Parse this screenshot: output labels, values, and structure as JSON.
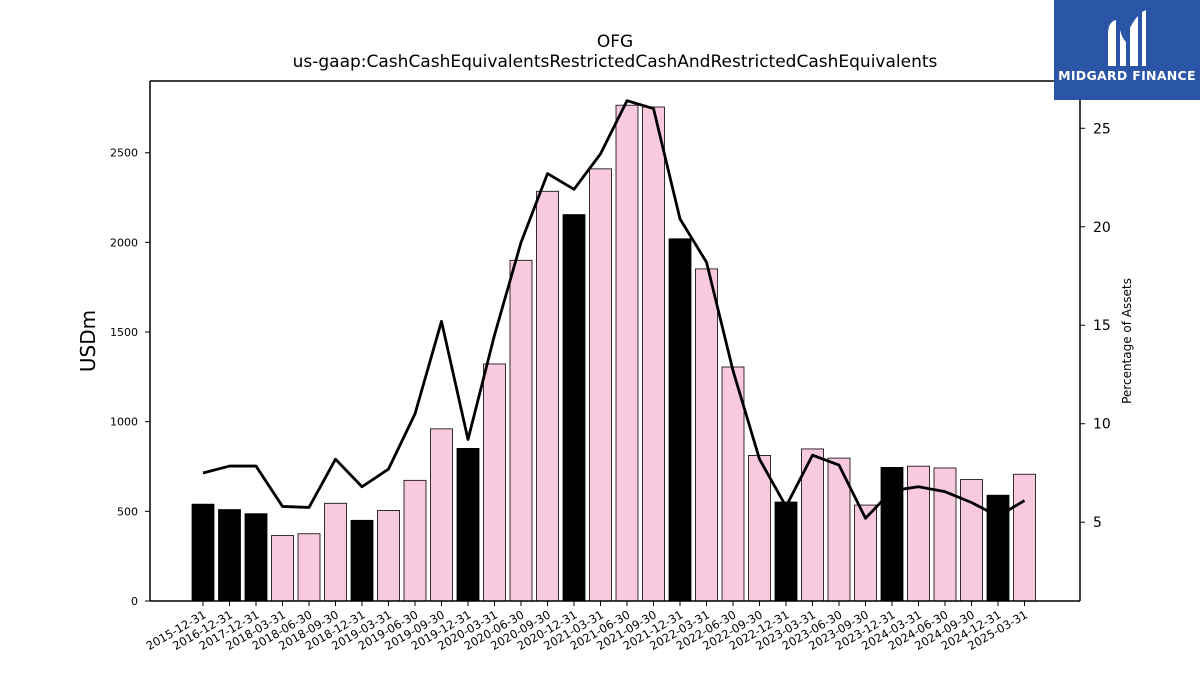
{
  "chart_data": {
    "type": "bar",
    "title": "OFG",
    "subtitle": "us-gaap:CashCashEquivalentsRestrictedCashAndRestrictedCashEquivalents",
    "ylabel": "USDm",
    "y2label": "Percentage of Assets",
    "ylim": [
      0,
      2900
    ],
    "y2lim": [
      1.0,
      27.4
    ],
    "yticks": [
      0,
      500,
      1000,
      1500,
      2000,
      2500
    ],
    "y2ticks": [
      5,
      10,
      15,
      20,
      25
    ],
    "categories": [
      "2015-12-31",
      "2016-12-31",
      "2017-12-31",
      "2018-03-31",
      "2018-06-30",
      "2018-09-30",
      "2018-12-31",
      "2019-03-31",
      "2019-06-30",
      "2019-09-30",
      "2019-12-31",
      "2020-03-31",
      "2020-06-30",
      "2020-09-30",
      "2020-12-31",
      "2021-03-31",
      "2021-06-30",
      "2021-09-30",
      "2021-12-31",
      "2022-03-31",
      "2022-06-30",
      "2022-09-30",
      "2022-12-31",
      "2023-03-31",
      "2023-06-30",
      "2023-09-30",
      "2023-12-31",
      "2024-03-31",
      "2024-06-30",
      "2024-09-30",
      "2024-12-31",
      "2025-03-31"
    ],
    "series": [
      {
        "kind": "bar",
        "values": [
          540,
          510,
          487,
          365,
          375,
          545,
          450,
          505,
          673,
          960,
          851,
          1322,
          1900,
          2285,
          2155,
          2410,
          2765,
          2755,
          2020,
          1852,
          1305,
          812,
          552,
          848,
          797,
          535,
          745,
          752,
          742,
          677,
          590,
          707
        ],
        "annual_color": "#000000",
        "quarterly_color": "#f9c9e0",
        "annual_flags": [
          true,
          true,
          true,
          false,
          false,
          false,
          true,
          false,
          false,
          false,
          true,
          false,
          false,
          false,
          true,
          false,
          false,
          false,
          true,
          false,
          false,
          false,
          true,
          false,
          false,
          false,
          true,
          false,
          false,
          false,
          true,
          false
        ]
      },
      {
        "kind": "line",
        "axis": "right",
        "values": [
          7.5,
          7.85,
          7.85,
          5.8,
          5.75,
          8.2,
          6.8,
          7.7,
          10.5,
          15.2,
          9.2,
          14.5,
          19.2,
          22.7,
          21.9,
          23.7,
          26.4,
          26.0,
          20.4,
          18.2,
          12.7,
          8.2,
          5.8,
          8.4,
          7.9,
          5.2,
          6.6,
          6.8,
          6.55,
          6.0,
          5.3,
          6.1
        ],
        "color": "#000000"
      }
    ],
    "grid": false
  },
  "logo": {
    "name": "MIDGARD FINANCE"
  }
}
